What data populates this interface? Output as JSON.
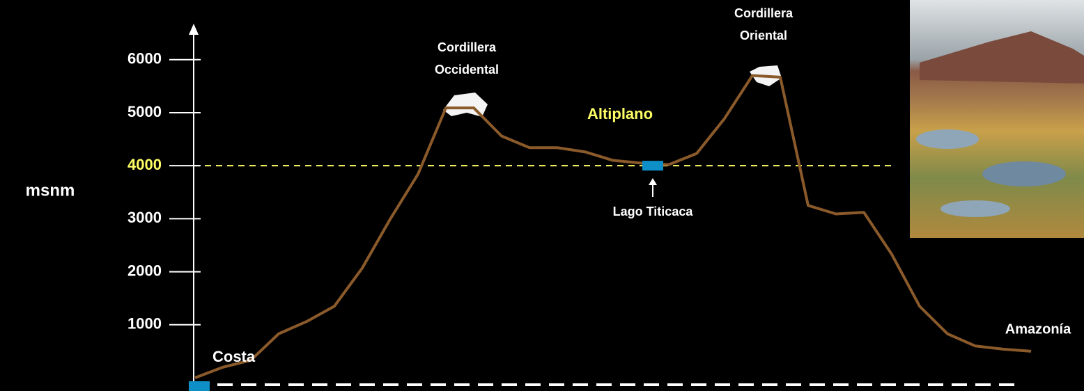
{
  "chart_data": {
    "type": "line",
    "y_label": "msnm",
    "categories": [
      null,
      null,
      null,
      null,
      null,
      null,
      null,
      null,
      null,
      null,
      null,
      null,
      null,
      null,
      null,
      null,
      null,
      null,
      null,
      null,
      null,
      null,
      null,
      null,
      null,
      null,
      null,
      null,
      null,
      null,
      null
    ],
    "values": [
      0,
      200,
      330,
      830,
      1060,
      1350,
      2070,
      2990,
      3840,
      5090,
      5090,
      4560,
      4340,
      4340,
      4260,
      4100,
      4050,
      4020,
      4230,
      4890,
      5700,
      5670,
      3250,
      3090,
      3120,
      2330,
      1350,
      830,
      600,
      540,
      500
    ],
    "color": "#8b5a2b",
    "ylim": [
      0,
      6600
    ],
    "yticks": [
      1000,
      2000,
      3000,
      4000,
      5000,
      6000
    ],
    "tick_color": "#ffffff",
    "highlight_tick": 4000,
    "reference_line": {
      "value": 4000,
      "color": "#ffff66"
    },
    "annotations": {
      "costa": "Costa",
      "occidental": [
        "Cordillera",
        "Occidental"
      ],
      "oriental": [
        "Cordillera",
        "Oriental"
      ],
      "altiplano": "Altiplano",
      "titicaca": "Lago Titicaca",
      "amazonia": "Amazonía"
    }
  }
}
